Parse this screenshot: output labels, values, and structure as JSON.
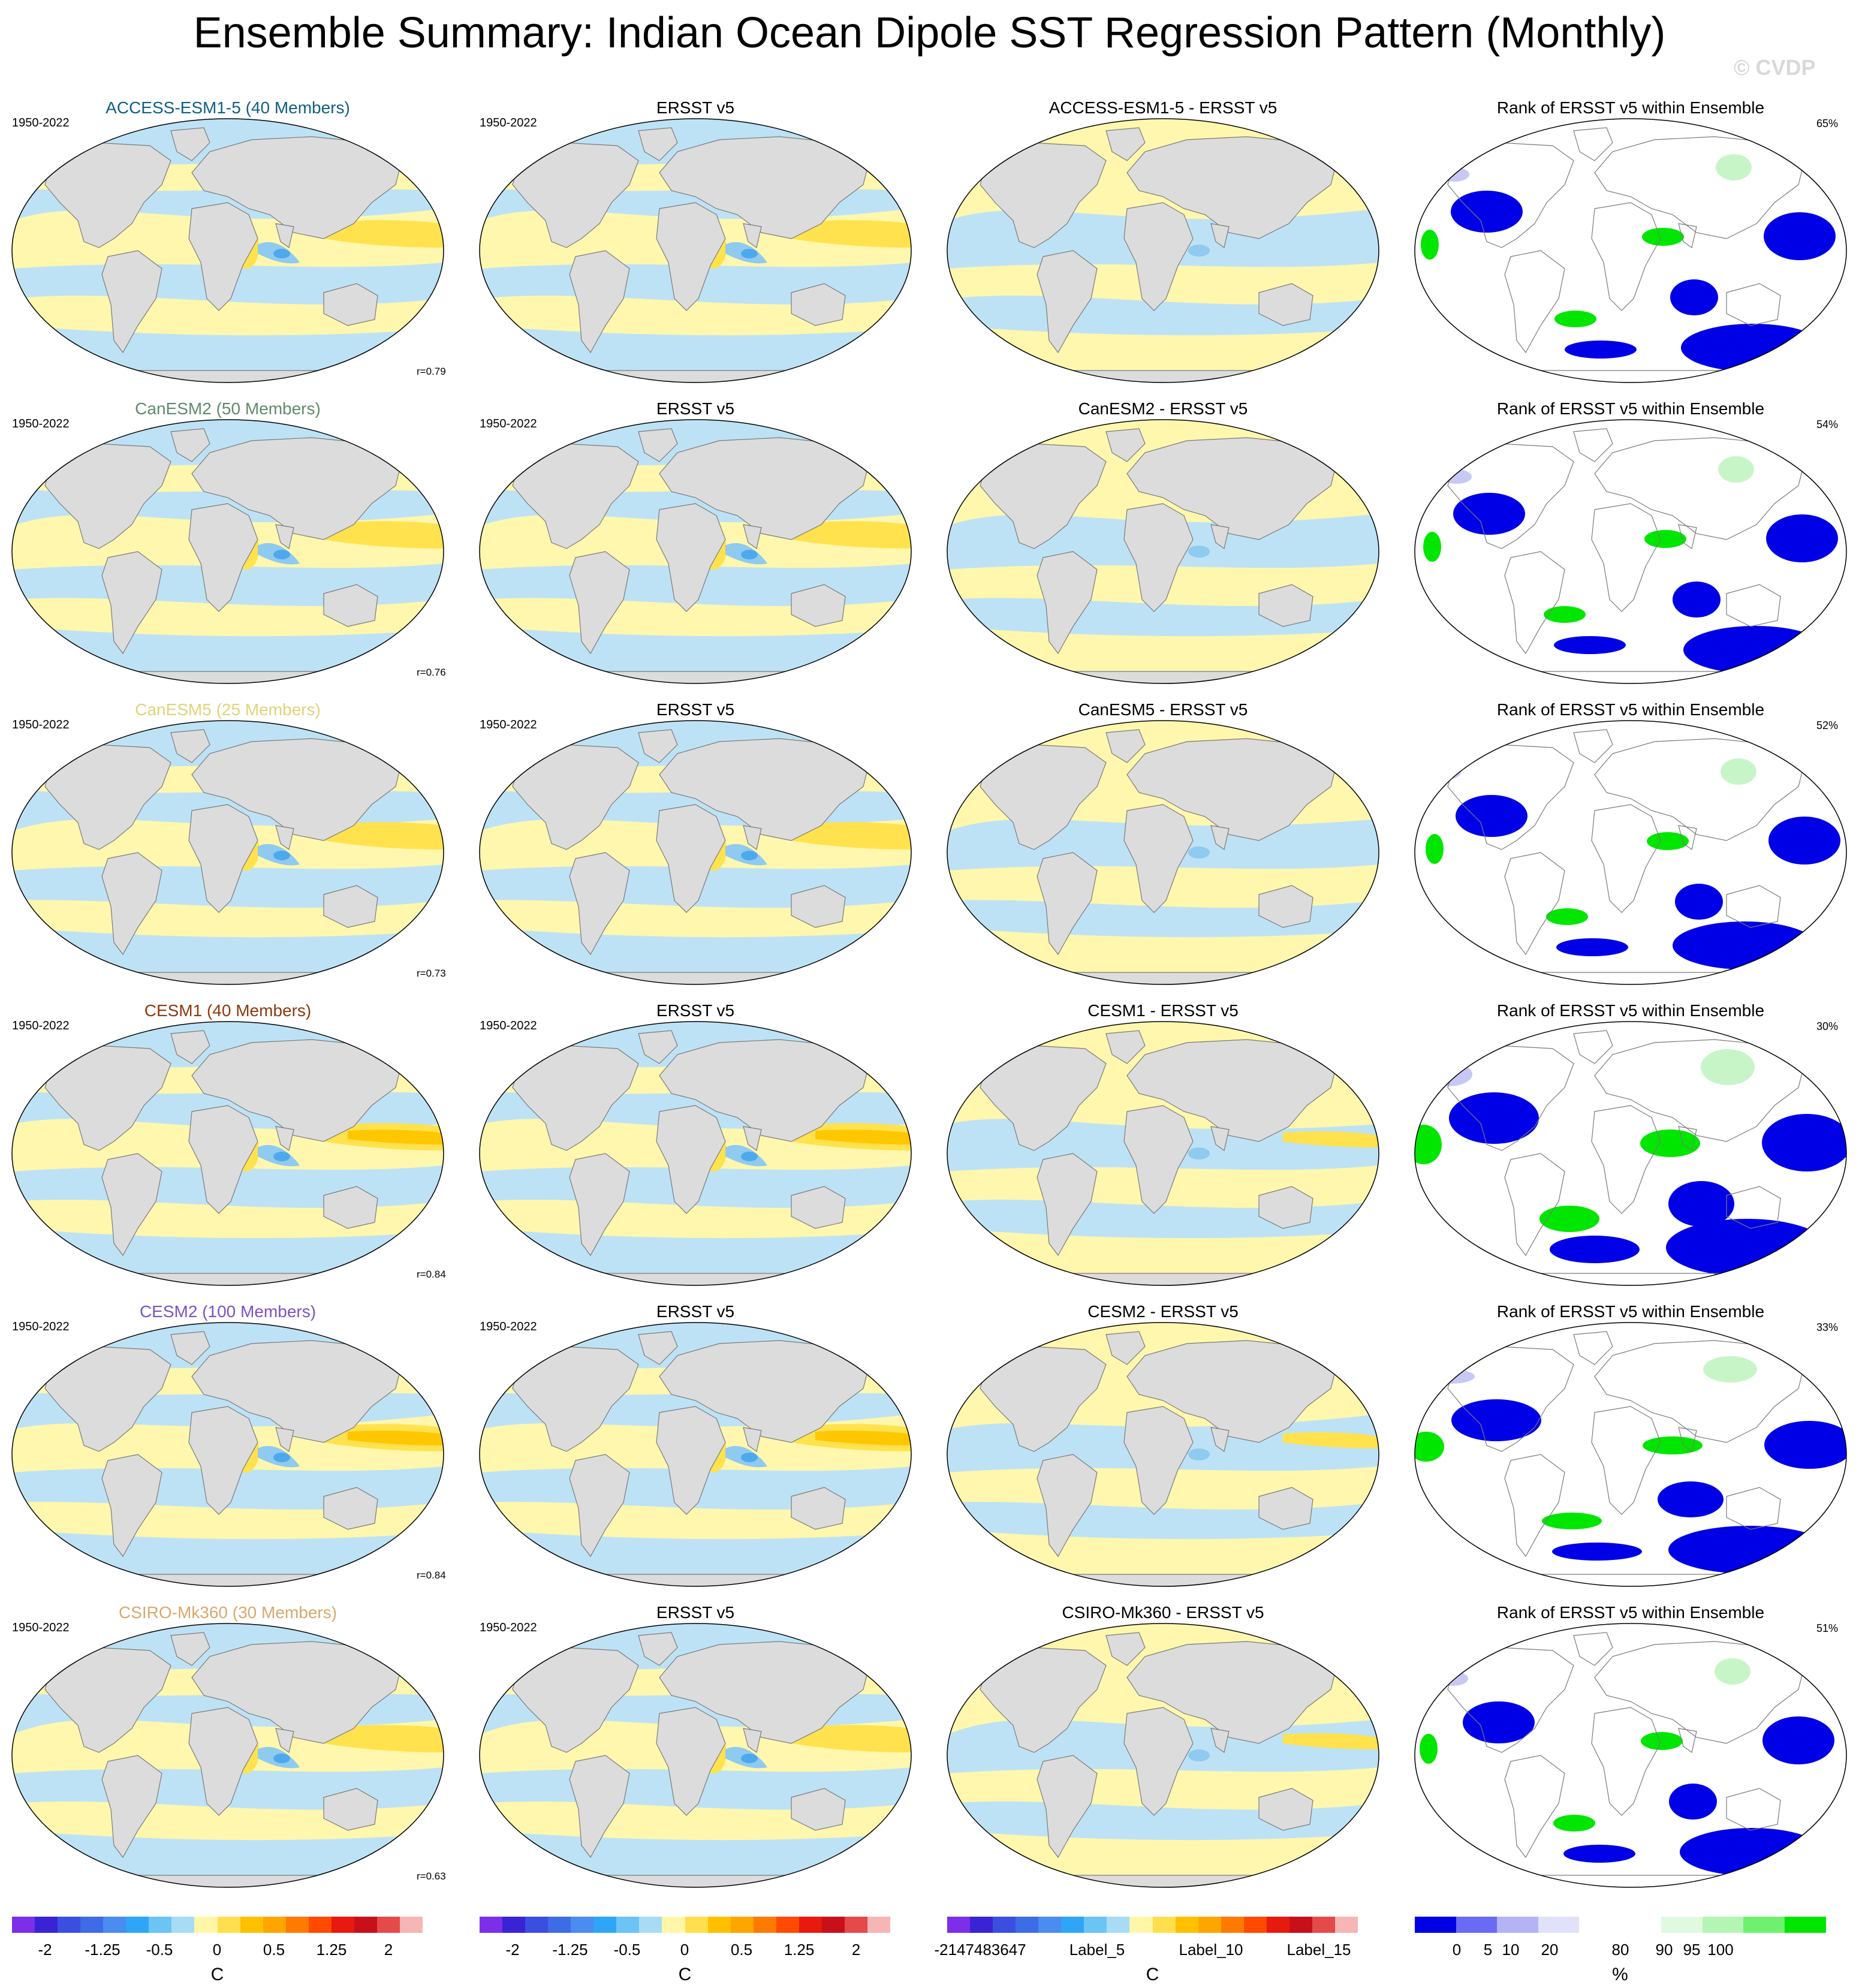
{
  "title": "Ensemble Summary: Indian Ocean Dipole SST Regression Pattern (Monthly)",
  "watermark": "© CVDP",
  "rows": [
    {
      "model": "ACCESS-ESM1-5 (40 Members)",
      "model_color": "#0f5f82",
      "years": "1950-2022",
      "obs_title": "ERSST v5",
      "obs_years": "1950-2022",
      "diff_title": "ACCESS-ESM1-5 - ERSST v5",
      "rank_title": "Rank of ERSST v5 within Ensemble",
      "corr": "r=0.79",
      "rank_pct": "65%"
    },
    {
      "model": "CanESM2 (50 Members)",
      "model_color": "#5f8a6a",
      "years": "1950-2022",
      "obs_title": "ERSST v5",
      "obs_years": "1950-2022",
      "diff_title": "CanESM2 - ERSST v5",
      "rank_title": "Rank of ERSST v5 within Ensemble",
      "corr": "r=0.76",
      "rank_pct": "54%"
    },
    {
      "model": "CanESM5 (25 Members)",
      "model_color": "#e0d37a",
      "years": "1950-2022",
      "obs_title": "ERSST v5",
      "obs_years": "1950-2022",
      "diff_title": "CanESM5 - ERSST v5",
      "rank_title": "Rank of ERSST v5 within Ensemble",
      "corr": "r=0.73",
      "rank_pct": "52%"
    },
    {
      "model": "CESM1 (40 Members)",
      "model_color": "#8b3a0e",
      "years": "1950-2022",
      "obs_title": "ERSST v5",
      "obs_years": "1950-2022",
      "diff_title": "CESM1 - ERSST v5",
      "rank_title": "Rank of ERSST v5 within Ensemble",
      "corr": "r=0.84",
      "rank_pct": "30%"
    },
    {
      "model": "CESM2 (100 Members)",
      "model_color": "#7b52c8",
      "years": "1950-2022",
      "obs_title": "ERSST v5",
      "obs_years": "1950-2022",
      "diff_title": "CESM2 - ERSST v5",
      "rank_title": "Rank of ERSST v5 within Ensemble",
      "corr": "r=0.84",
      "rank_pct": "33%"
    },
    {
      "model": "CSIRO-Mk360 (30 Members)",
      "model_color": "#d8a96e",
      "years": "1950-2022",
      "obs_title": "ERSST v5",
      "obs_years": "1950-2022",
      "diff_title": "CSIRO-Mk360 - ERSST v5",
      "rank_title": "Rank of ERSST v5 within Ensemble",
      "corr": "r=0.63",
      "rank_pct": "51%"
    }
  ],
  "colorbars": {
    "sst": {
      "colors": [
        "#7d2ee8",
        "#3a23d4",
        "#3a4fe0",
        "#3d6ce6",
        "#4a8cf0",
        "#2fa6f5",
        "#6cc4f5",
        "#a8dcf5",
        "#fff6a8",
        "#ffdf4d",
        "#ffc000",
        "#ffa500",
        "#ff7a00",
        "#ff4a00",
        "#e8190f",
        "#c8101a",
        "#e44a4a",
        "#f7b5b5"
      ],
      "ticks": [
        "-2",
        "-1.25",
        "-0.5",
        "0",
        "0.5",
        "1.25",
        "2"
      ],
      "unit": "C"
    },
    "diff": {
      "colors": [
        "#7d2ee8",
        "#3a23d4",
        "#3a4fe0",
        "#3d6ce6",
        "#4a8cf0",
        "#2fa6f5",
        "#6cc4f5",
        "#a8dcf5",
        "#fff6a8",
        "#ffdf4d",
        "#ffc000",
        "#ffa500",
        "#ff7a00",
        "#ff4a00",
        "#e8190f",
        "#c8101a",
        "#e44a4a",
        "#f7b5b5"
      ],
      "ticks": [
        "-2147483647",
        "Label_5",
        "Label_10",
        "Label_15"
      ],
      "unit": "C"
    },
    "rank": {
      "colors": [
        "#0000e6",
        "#6a6af5",
        "#b3b3f5",
        "#e1e1fa",
        "#ffffff",
        "#ffffff",
        "#e0fae0",
        "#b4f5b4",
        "#6ef26e",
        "#00e600"
      ],
      "ticks": [
        "0",
        "5",
        "10",
        "20",
        "80",
        "90",
        "95",
        "100"
      ],
      "unit": "%"
    }
  },
  "map_colors": {
    "land": "#dcdcdc",
    "neg1": "#bde2f5",
    "neg2": "#8fcaf0",
    "neg3": "#4ea9ec",
    "pos1": "#fff7ad",
    "pos2": "#ffe24d",
    "pos3": "#ffc700",
    "rank_low": "#0000e6",
    "rank_mid": "#c8c8f5",
    "rank_high": "#00e600",
    "rank_light": "#c8f5c8"
  }
}
